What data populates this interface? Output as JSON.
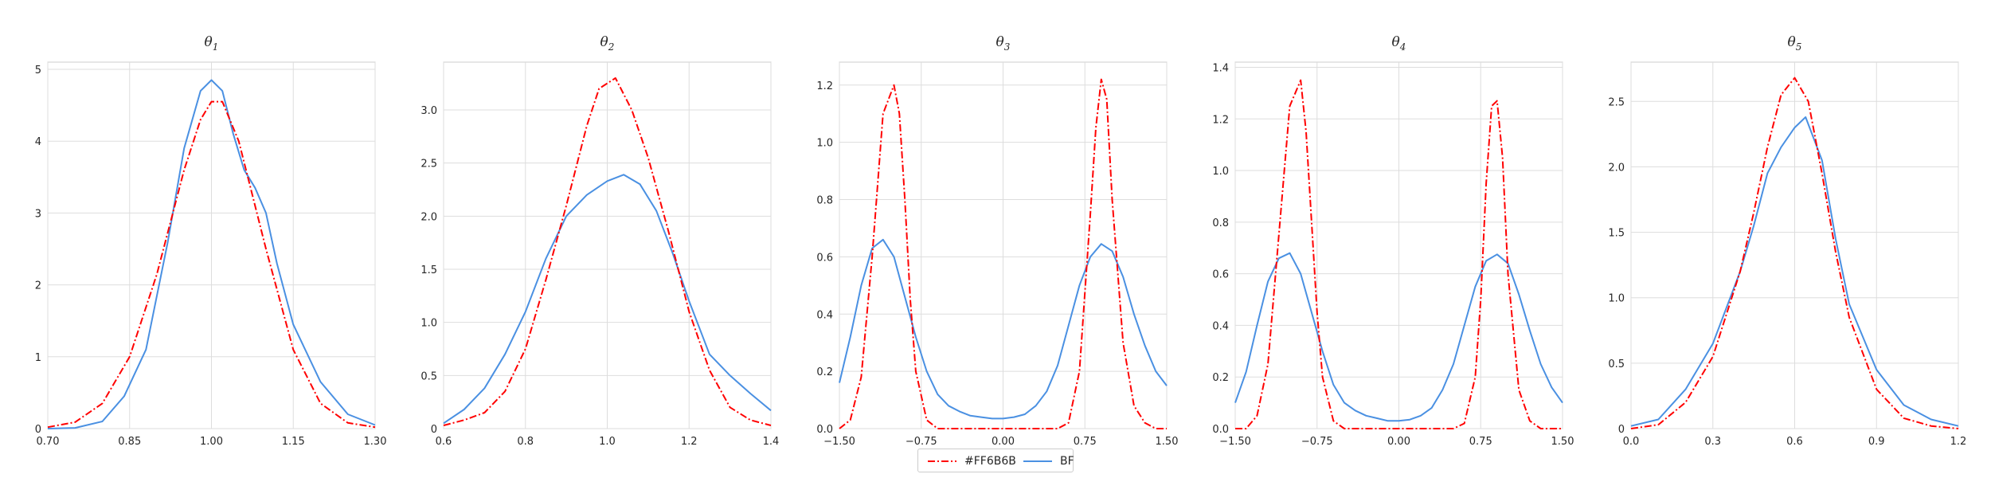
{
  "chart_data": [
    {
      "type": "line",
      "title_base": "θ",
      "title_sub": "1",
      "xlim": [
        0.7,
        1.3
      ],
      "ylim": [
        0,
        5.1
      ],
      "xticks": [
        0.7,
        0.85,
        1.0,
        1.15,
        1.3
      ],
      "xtick_labels": [
        "0.70",
        "0.85",
        "1.00",
        "1.15",
        "1.30"
      ],
      "yticks": [
        0,
        1,
        2,
        3,
        4,
        5
      ],
      "ytick_labels": [
        "0",
        "1",
        "2",
        "3",
        "4",
        "5"
      ],
      "series": [
        {
          "name": "#FF6B6B",
          "color": "#ff0000",
          "dash": "dashdot",
          "x": [
            0.7,
            0.75,
            0.8,
            0.85,
            0.9,
            0.95,
            0.98,
            1.0,
            1.02,
            1.05,
            1.1,
            1.15,
            1.2,
            1.25,
            1.3
          ],
          "y": [
            0.02,
            0.09,
            0.35,
            1.0,
            2.15,
            3.6,
            4.3,
            4.55,
            4.55,
            4.0,
            2.5,
            1.1,
            0.35,
            0.08,
            0.02
          ]
        },
        {
          "name": "BF",
          "color": "#4a90e2",
          "dash": "solid",
          "x": [
            0.7,
            0.75,
            0.8,
            0.84,
            0.88,
            0.92,
            0.95,
            0.98,
            1.0,
            1.02,
            1.04,
            1.06,
            1.08,
            1.1,
            1.12,
            1.15,
            1.2,
            1.25,
            1.3
          ],
          "y": [
            0.0,
            0.01,
            0.1,
            0.45,
            1.1,
            2.6,
            3.9,
            4.7,
            4.85,
            4.7,
            4.1,
            3.6,
            3.35,
            3.0,
            2.3,
            1.45,
            0.65,
            0.2,
            0.05
          ]
        }
      ]
    },
    {
      "type": "line",
      "title_base": "θ",
      "title_sub": "2",
      "xlim": [
        0.6,
        1.4
      ],
      "ylim": [
        0,
        3.45
      ],
      "xticks": [
        0.6,
        0.8,
        1.0,
        1.2,
        1.4
      ],
      "xtick_labels": [
        "0.6",
        "0.8",
        "1.0",
        "1.2",
        "1.4"
      ],
      "yticks": [
        0,
        0.5,
        1.0,
        1.5,
        2.0,
        2.5,
        3.0
      ],
      "ytick_labels": [
        "0",
        "0.5",
        "1.0",
        "1.5",
        "2.0",
        "2.5",
        "3.0"
      ],
      "series": [
        {
          "name": "#FF6B6B",
          "color": "#ff0000",
          "dash": "dashdot",
          "x": [
            0.6,
            0.65,
            0.7,
            0.75,
            0.8,
            0.85,
            0.9,
            0.95,
            0.98,
            1.02,
            1.06,
            1.1,
            1.15,
            1.2,
            1.25,
            1.3,
            1.35,
            1.4
          ],
          "y": [
            0.03,
            0.08,
            0.15,
            0.35,
            0.75,
            1.4,
            2.1,
            2.85,
            3.2,
            3.3,
            3.0,
            2.55,
            1.85,
            1.1,
            0.55,
            0.2,
            0.08,
            0.03
          ]
        },
        {
          "name": "BF",
          "color": "#4a90e2",
          "dash": "solid",
          "x": [
            0.6,
            0.65,
            0.7,
            0.75,
            0.8,
            0.85,
            0.9,
            0.95,
            1.0,
            1.04,
            1.08,
            1.12,
            1.16,
            1.2,
            1.25,
            1.3,
            1.35,
            1.4
          ],
          "y": [
            0.05,
            0.18,
            0.38,
            0.7,
            1.1,
            1.6,
            2.0,
            2.2,
            2.33,
            2.39,
            2.3,
            2.05,
            1.65,
            1.2,
            0.7,
            0.5,
            0.33,
            0.17
          ]
        }
      ]
    },
    {
      "type": "line",
      "title_base": "θ",
      "title_sub": "3",
      "xlim": [
        -1.5,
        1.5
      ],
      "ylim": [
        0,
        1.28
      ],
      "xticks": [
        -1.5,
        -0.75,
        0.0,
        0.75,
        1.5
      ],
      "xtick_labels": [
        "−1.50",
        "−0.75",
        "0.00",
        "0.75",
        "1.50"
      ],
      "yticks": [
        0,
        0.2,
        0.4,
        0.6,
        0.8,
        1.0,
        1.2
      ],
      "ytick_labels": [
        "0.0",
        "0.2",
        "0.4",
        "0.6",
        "0.8",
        "1.0",
        "1.2"
      ],
      "series": [
        {
          "name": "#FF6B6B",
          "color": "#ff0000",
          "dash": "dashdot",
          "x": [
            -1.5,
            -1.4,
            -1.3,
            -1.2,
            -1.1,
            -1.0,
            -0.95,
            -0.9,
            -0.85,
            -0.8,
            -0.7,
            -0.6,
            -0.5,
            -0.4,
            0.0,
            0.4,
            0.5,
            0.6,
            0.7,
            0.8,
            0.85,
            0.9,
            0.95,
            1.0,
            1.1,
            1.2,
            1.3,
            1.4,
            1.5
          ],
          "y": [
            0.0,
            0.03,
            0.18,
            0.6,
            1.1,
            1.2,
            1.1,
            0.8,
            0.45,
            0.2,
            0.03,
            0.0,
            0.0,
            0.0,
            0.0,
            0.0,
            0.0,
            0.02,
            0.2,
            0.75,
            1.05,
            1.22,
            1.15,
            0.8,
            0.3,
            0.08,
            0.02,
            0.0,
            0.0
          ]
        },
        {
          "name": "BF",
          "color": "#4a90e2",
          "dash": "solid",
          "x": [
            -1.5,
            -1.4,
            -1.3,
            -1.2,
            -1.1,
            -1.0,
            -0.9,
            -0.8,
            -0.7,
            -0.6,
            -0.5,
            -0.4,
            -0.3,
            -0.2,
            -0.1,
            0.0,
            0.1,
            0.2,
            0.3,
            0.4,
            0.5,
            0.6,
            0.7,
            0.8,
            0.9,
            1.0,
            1.1,
            1.2,
            1.3,
            1.4,
            1.5
          ],
          "y": [
            0.16,
            0.32,
            0.5,
            0.63,
            0.66,
            0.6,
            0.46,
            0.32,
            0.2,
            0.12,
            0.08,
            0.06,
            0.045,
            0.04,
            0.035,
            0.035,
            0.04,
            0.05,
            0.08,
            0.13,
            0.22,
            0.36,
            0.5,
            0.6,
            0.645,
            0.62,
            0.53,
            0.4,
            0.29,
            0.2,
            0.15
          ]
        }
      ]
    },
    {
      "type": "line",
      "title_base": "θ",
      "title_sub": "4",
      "xlim": [
        -1.5,
        1.5
      ],
      "ylim": [
        0,
        1.42
      ],
      "xticks": [
        -1.5,
        -0.75,
        0.0,
        0.75,
        1.5
      ],
      "xtick_labels": [
        "−1.50",
        "−0.75",
        "0.00",
        "0.75",
        "1.50"
      ],
      "yticks": [
        0,
        0.2,
        0.4,
        0.6,
        0.8,
        1.0,
        1.2,
        1.4
      ],
      "ytick_labels": [
        "0.0",
        "0.2",
        "0.4",
        "0.6",
        "0.8",
        "1.0",
        "1.2",
        "1.4"
      ],
      "series": [
        {
          "name": "#FF6B6B",
          "color": "#ff0000",
          "dash": "dashdot",
          "x": [
            -1.5,
            -1.4,
            -1.3,
            -1.2,
            -1.1,
            -1.0,
            -0.9,
            -0.85,
            -0.8,
            -0.75,
            -0.7,
            -0.6,
            -0.5,
            -0.4,
            0.0,
            0.4,
            0.5,
            0.6,
            0.7,
            0.75,
            0.8,
            0.85,
            0.9,
            0.95,
            1.0,
            1.1,
            1.2,
            1.3,
            1.4,
            1.5
          ],
          "y": [
            0.0,
            0.0,
            0.05,
            0.25,
            0.75,
            1.25,
            1.35,
            1.15,
            0.8,
            0.45,
            0.2,
            0.03,
            0.0,
            0.0,
            0.0,
            0.0,
            0.0,
            0.02,
            0.2,
            0.5,
            0.95,
            1.25,
            1.27,
            1.05,
            0.6,
            0.15,
            0.03,
            0.0,
            0.0,
            0.0
          ]
        },
        {
          "name": "BF",
          "color": "#4a90e2",
          "dash": "solid",
          "x": [
            -1.5,
            -1.4,
            -1.3,
            -1.2,
            -1.1,
            -1.0,
            -0.9,
            -0.8,
            -0.7,
            -0.6,
            -0.5,
            -0.4,
            -0.3,
            -0.2,
            -0.1,
            0.0,
            0.1,
            0.2,
            0.3,
            0.4,
            0.5,
            0.6,
            0.7,
            0.8,
            0.9,
            1.0,
            1.1,
            1.2,
            1.3,
            1.4,
            1.5
          ],
          "y": [
            0.1,
            0.22,
            0.4,
            0.57,
            0.66,
            0.68,
            0.6,
            0.45,
            0.3,
            0.17,
            0.1,
            0.07,
            0.05,
            0.04,
            0.03,
            0.03,
            0.035,
            0.05,
            0.08,
            0.15,
            0.25,
            0.4,
            0.55,
            0.65,
            0.675,
            0.64,
            0.52,
            0.38,
            0.25,
            0.16,
            0.1
          ]
        }
      ]
    },
    {
      "type": "line",
      "title_base": "θ",
      "title_sub": "5",
      "xlim": [
        0.0,
        1.2
      ],
      "ylim": [
        0,
        2.8
      ],
      "xticks": [
        0.0,
        0.3,
        0.6,
        0.9,
        1.2
      ],
      "xtick_labels": [
        "0.0",
        "0.3",
        "0.6",
        "0.9",
        "1.2"
      ],
      "yticks": [
        0,
        0.5,
        1.0,
        1.5,
        2.0,
        2.5
      ],
      "ytick_labels": [
        "0",
        "0.5",
        "1.0",
        "1.5",
        "2.0",
        "2.5"
      ],
      "series": [
        {
          "name": "#FF6B6B",
          "color": "#ff0000",
          "dash": "dashdot",
          "x": [
            0.0,
            0.1,
            0.2,
            0.3,
            0.4,
            0.45,
            0.5,
            0.55,
            0.6,
            0.65,
            0.7,
            0.75,
            0.8,
            0.9,
            1.0,
            1.1,
            1.2
          ],
          "y": [
            0.0,
            0.03,
            0.2,
            0.55,
            1.2,
            1.65,
            2.15,
            2.55,
            2.68,
            2.5,
            1.95,
            1.35,
            0.85,
            0.3,
            0.08,
            0.02,
            0.0
          ]
        },
        {
          "name": "BF",
          "color": "#4a90e2",
          "dash": "solid",
          "x": [
            0.0,
            0.1,
            0.2,
            0.3,
            0.4,
            0.45,
            0.5,
            0.55,
            0.6,
            0.64,
            0.7,
            0.75,
            0.8,
            0.9,
            1.0,
            1.1,
            1.2
          ],
          "y": [
            0.02,
            0.07,
            0.3,
            0.65,
            1.2,
            1.55,
            1.95,
            2.15,
            2.3,
            2.38,
            2.05,
            1.45,
            0.95,
            0.45,
            0.18,
            0.07,
            0.02
          ]
        }
      ]
    }
  ],
  "legend": {
    "placement": "bottom-center",
    "items": [
      {
        "label": "#FF6B6B",
        "color": "#ff0000",
        "dash": "dashdot"
      },
      {
        "label": "BF",
        "color": "#4a90e2",
        "dash": "solid"
      }
    ]
  }
}
